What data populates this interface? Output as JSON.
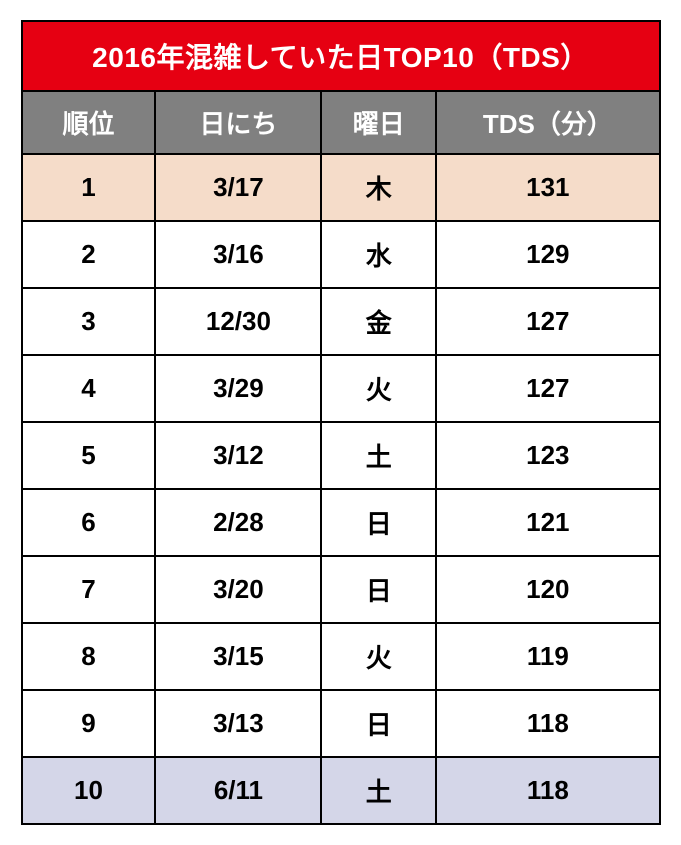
{
  "title": "2016年混雑していた日TOP10（TDS）",
  "columns": [
    "順位",
    "日にち",
    "曜日",
    "TDS（分）"
  ],
  "rows": [
    {
      "rank": "1",
      "date": "3/17",
      "dow": "木",
      "value": "131",
      "bg": "#f5dcc9"
    },
    {
      "rank": "2",
      "date": "3/16",
      "dow": "水",
      "value": "129",
      "bg": "#ffffff"
    },
    {
      "rank": "3",
      "date": "12/30",
      "dow": "金",
      "value": "127",
      "bg": "#ffffff"
    },
    {
      "rank": "4",
      "date": "3/29",
      "dow": "火",
      "value": "127",
      "bg": "#ffffff"
    },
    {
      "rank": "5",
      "date": "3/12",
      "dow": "土",
      "value": "123",
      "bg": "#ffffff"
    },
    {
      "rank": "6",
      "date": "2/28",
      "dow": "日",
      "value": "121",
      "bg": "#ffffff"
    },
    {
      "rank": "7",
      "date": "3/20",
      "dow": "日",
      "value": "120",
      "bg": "#ffffff"
    },
    {
      "rank": "8",
      "date": "3/15",
      "dow": "火",
      "value": "119",
      "bg": "#ffffff"
    },
    {
      "rank": "9",
      "date": "3/13",
      "dow": "日",
      "value": "118",
      "bg": "#ffffff"
    },
    {
      "rank": "10",
      "date": "6/11",
      "dow": "土",
      "value": "118",
      "bg": "#d4d6e8"
    }
  ],
  "style": {
    "title_bg": "#e60012",
    "title_color": "#ffffff",
    "header_bg": "#808080",
    "header_color": "#ffffff",
    "text_color": "#000000",
    "border_color": "#000000",
    "title_fontsize": 28,
    "header_fontsize": 26,
    "cell_fontsize": 26,
    "font_weight": 900
  }
}
